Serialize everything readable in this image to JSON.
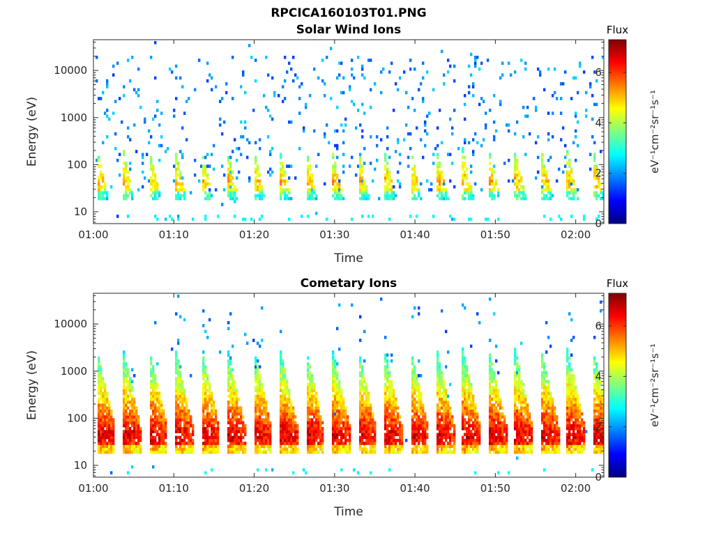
{
  "figure": {
    "title": "RPCICA160103T01.PNG"
  },
  "colorscale": {
    "stops": [
      "#00007f",
      "#0000ff",
      "#007fff",
      "#00ffff",
      "#7fff7f",
      "#ffff00",
      "#ff7f00",
      "#ff0000",
      "#7f0000"
    ],
    "colorbar_ticks": [
      "0",
      "2",
      "4",
      "6"
    ]
  },
  "chart_data": [
    {
      "type": "heatmap",
      "title": "Solar Wind Ions",
      "xlabel": "Time",
      "ylabel": "Energy (eV)",
      "x_ticks": [
        "01:00",
        "01:10",
        "01:20",
        "01:30",
        "01:40",
        "01:50",
        "02:00"
      ],
      "x_range_minutes": [
        0,
        63.5
      ],
      "y_ticks": [
        "10",
        "100",
        "1000",
        "10000"
      ],
      "y_ticks_values": [
        10,
        100,
        1000,
        10000
      ],
      "y_scale": "log",
      "y_range": [
        5.6,
        45000
      ],
      "colorbar_label": "Flux",
      "colorbar_units": "eV⁻¹cm⁻²sr⁻¹s⁻¹",
      "colorbar_range": [
        0,
        7.3
      ],
      "burst_period_minutes": 3.25,
      "burst_peak_flux_approx": 5.2,
      "burst_peak_energy_eV": 40,
      "burst_max_energy_eV": 300,
      "background": "sparse scattered counts up to ~20000 eV at flux ~1-2"
    },
    {
      "type": "heatmap",
      "title": "Cometary Ions",
      "xlabel": "Time",
      "ylabel": "Energy (eV)",
      "x_ticks": [
        "01:00",
        "01:10",
        "01:20",
        "01:30",
        "01:40",
        "01:50",
        "02:00"
      ],
      "x_range_minutes": [
        0,
        63.5
      ],
      "y_ticks": [
        "10",
        "100",
        "1000",
        "10000"
      ],
      "y_ticks_values": [
        10,
        100,
        1000,
        10000
      ],
      "y_scale": "log",
      "y_range": [
        5.6,
        45000
      ],
      "colorbar_label": "Flux",
      "colorbar_units": "eV⁻¹cm⁻²sr⁻¹s⁻¹",
      "colorbar_range": [
        0,
        7.3
      ],
      "burst_period_minutes": 3.25,
      "burst_peak_flux_approx": 6.8,
      "burst_peak_energy_eV": 40,
      "burst_max_energy_eV": 3000,
      "background": "sparse high-energy counts up to ~20000 eV near burst onsets"
    }
  ]
}
